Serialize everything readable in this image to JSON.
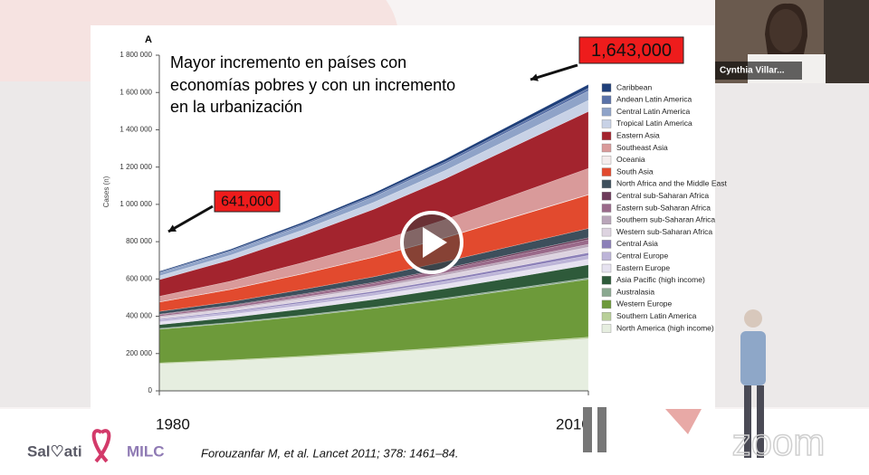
{
  "chart_data": {
    "type": "stacked_area",
    "panel_label": "A",
    "y_label": "Cases (n)",
    "x": [
      1980,
      1985,
      1990,
      1995,
      2000,
      2005,
      2010
    ],
    "xlim": [
      1980,
      2010
    ],
    "xticks": [
      1980,
      2010
    ],
    "ylim": [
      0,
      1800000
    ],
    "yticks": [
      0,
      {
        "value": 200000,
        "label": "200 000"
      },
      {
        "value": 400000,
        "label": "400 000"
      },
      {
        "value": 600000,
        "label": "600 000"
      },
      {
        "value": 800000,
        "label": "800 000"
      },
      {
        "value": 1000000,
        "label": "1 000 000"
      },
      {
        "value": 1200000,
        "label": "1 200 000"
      },
      {
        "value": 1400000,
        "label": "1 400 000"
      },
      {
        "value": 1600000,
        "label": "1 600 000"
      },
      {
        "value": 1800000,
        "label": "1 800 000"
      }
    ],
    "annotations": [
      {
        "text": "641,000",
        "x": 1980
      },
      {
        "text": "1,643,000",
        "x": 2010
      }
    ],
    "series": [
      {
        "name": "Caribbean",
        "color": "#1f3f7a",
        "values": [
          5000,
          7000,
          9000,
          11000,
          14000,
          17000,
          20000
        ]
      },
      {
        "name": "Andean Latin America",
        "color": "#5a72a8",
        "values": [
          5000,
          6000,
          8000,
          9000,
          11000,
          13000,
          15000
        ]
      },
      {
        "name": "Central Latin America",
        "color": "#8fa3c8",
        "values": [
          15000,
          19000,
          24000,
          30000,
          36000,
          43000,
          50000
        ]
      },
      {
        "name": "Tropical Latin America",
        "color": "#c8d2e6",
        "values": [
          20000,
          25000,
          30000,
          37000,
          44000,
          52000,
          60000
        ]
      },
      {
        "name": "Eastern Asia",
        "color": "#a3242e",
        "values": [
          89000,
          115000,
          145000,
          180000,
          219000,
          262000,
          305000
        ]
      },
      {
        "name": "Southeast Asia",
        "color": "#d99a9a",
        "values": [
          30000,
          43000,
          59000,
          76000,
          96000,
          118000,
          140000
        ]
      },
      {
        "name": "Oceania",
        "color": "#f4ecec",
        "values": [
          1000,
          1000,
          1000,
          1000,
          2000,
          2000,
          2000
        ]
      },
      {
        "name": "South Asia",
        "color": "#e24a2e",
        "values": [
          50000,
          66000,
          84000,
          105000,
          128000,
          154000,
          180000
        ]
      },
      {
        "name": "North Africa and the Middle East",
        "color": "#3d4f5c",
        "values": [
          15000,
          19000,
          24000,
          30000,
          36000,
          43000,
          50000
        ]
      },
      {
        "name": "Central sub-Saharan Africa",
        "color": "#6d3a5a",
        "values": [
          3000,
          4000,
          5000,
          6000,
          7000,
          9000,
          10000
        ]
      },
      {
        "name": "Eastern sub-Saharan Africa",
        "color": "#9a6a8a",
        "values": [
          8000,
          10000,
          12000,
          15000,
          18000,
          22000,
          25000
        ]
      },
      {
        "name": "Southern sub-Saharan Africa",
        "color": "#b9a5b9",
        "values": [
          5000,
          6000,
          8000,
          9000,
          11000,
          13000,
          15000
        ]
      },
      {
        "name": "Western sub-Saharan Africa",
        "color": "#ddd3e0",
        "values": [
          10000,
          12000,
          15000,
          18000,
          22000,
          26000,
          30000
        ]
      },
      {
        "name": "Central Asia",
        "color": "#8c80b8",
        "values": [
          5000,
          6000,
          8000,
          9000,
          11000,
          13000,
          15000
        ]
      },
      {
        "name": "Central Europe",
        "color": "#bdb5d8",
        "values": [
          10000,
          11000,
          13000,
          14000,
          16000,
          18000,
          20000
        ]
      },
      {
        "name": "Eastern Europe",
        "color": "#e6e2f0",
        "values": [
          15000,
          17000,
          19000,
          21000,
          24000,
          27000,
          30000
        ]
      },
      {
        "name": "Asia Pacific (high income)",
        "color": "#2e5a3a",
        "values": [
          20000,
          26000,
          33000,
          41000,
          50000,
          60000,
          70000
        ]
      },
      {
        "name": "Australasia",
        "color": "#8aa890",
        "values": [
          5000,
          5000,
          6000,
          6000,
          7000,
          7000,
          8000
        ]
      },
      {
        "name": "Western Europe",
        "color": "#6d9a3a",
        "values": [
          180000,
          196000,
          214000,
          235000,
          258000,
          284000,
          310000
        ]
      },
      {
        "name": "Southern Latin America",
        "color": "#b8cf98",
        "values": [
          5000,
          5000,
          6000,
          6000,
          7000,
          7000,
          8000
        ]
      },
      {
        "name": "North America (high income)",
        "color": "#e6eee0",
        "values": [
          145000,
          161000,
          180000,
          202000,
          226000,
          253000,
          280000
        ]
      }
    ]
  },
  "slide": {
    "heading_lines": [
      "Mayor incremento en países con",
      "economías pobres y con un incremento",
      "en la urbanización"
    ],
    "citation": "Forouzanfar M, et al. Lancet 2011; 378: 1461–84.",
    "logo_left": "Sal♡ati",
    "logo_right": "MILC"
  },
  "video": {
    "participant": "Cynthia Villar...",
    "watermark": "zoom"
  }
}
